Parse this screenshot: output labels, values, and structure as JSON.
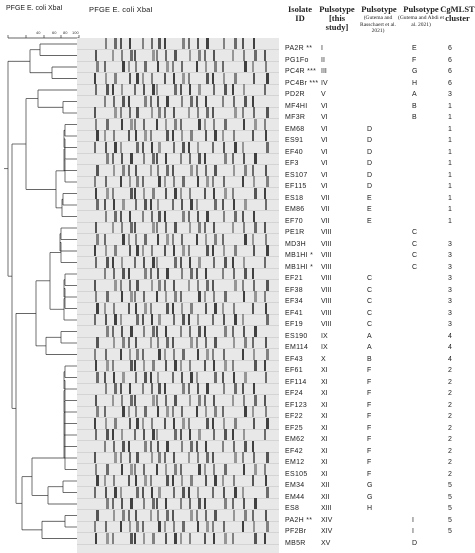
{
  "header": {
    "left_label": "PFGE E. coli XbaI",
    "gel_label": "PFGE E. coli XbaI"
  },
  "scale_ticks": [
    "40",
    "60",
    "80",
    "100"
  ],
  "columns": {
    "isolate": "Isolate ID",
    "pulsotype_this": "Pulsotype [this study]",
    "pulsotype_gutema": "Pulsotype",
    "pulsotype_gutema_sub": "(Gutema and Rasschaert et al. 2021)",
    "pulsotype_abdi": "Pulsotype",
    "pulsotype_abdi_sub": "(Gutema and Abdi et al. 2021)",
    "cgmlst": "CgMLST cluster"
  },
  "rows": [
    {
      "id": "PA2R **",
      "p1": "I",
      "p2": "",
      "p3": "E",
      "cg": "6"
    },
    {
      "id": "PG1Fo",
      "p1": "II",
      "p2": "",
      "p3": "F",
      "cg": "6"
    },
    {
      "id": "PC4R ***",
      "p1": "III",
      "p2": "",
      "p3": "G",
      "cg": "6"
    },
    {
      "id": "PC4Br ***",
      "p1": "IV",
      "p2": "",
      "p3": "H",
      "cg": "6"
    },
    {
      "id": "PD2R",
      "p1": "V",
      "p2": "",
      "p3": "A",
      "cg": "3"
    },
    {
      "id": "MF4HI",
      "p1": "VI",
      "p2": "",
      "p3": "B",
      "cg": "1"
    },
    {
      "id": "MF3R",
      "p1": "VI",
      "p2": "",
      "p3": "B",
      "cg": "1"
    },
    {
      "id": "EM68",
      "p1": "VI",
      "p2": "D",
      "p3": "",
      "cg": "1"
    },
    {
      "id": "ES91",
      "p1": "VI",
      "p2": "D",
      "p3": "",
      "cg": "1"
    },
    {
      "id": "EF40",
      "p1": "VI",
      "p2": "D",
      "p3": "",
      "cg": "1"
    },
    {
      "id": "EF3",
      "p1": "VI",
      "p2": "D",
      "p3": "",
      "cg": "1"
    },
    {
      "id": "ES107",
      "p1": "VI",
      "p2": "D",
      "p3": "",
      "cg": "1"
    },
    {
      "id": "EF115",
      "p1": "VI",
      "p2": "D",
      "p3": "",
      "cg": "1"
    },
    {
      "id": "ES18",
      "p1": "VII",
      "p2": "E",
      "p3": "",
      "cg": "1"
    },
    {
      "id": "EM86",
      "p1": "VII",
      "p2": "E",
      "p3": "",
      "cg": "1"
    },
    {
      "id": "EF70",
      "p1": "VII",
      "p2": "E",
      "p3": "",
      "cg": "1"
    },
    {
      "id": "PE1R",
      "p1": "VIII",
      "p2": "",
      "p3": "C",
      "cg": ""
    },
    {
      "id": "MD3H",
      "p1": "VIII",
      "p2": "",
      "p3": "C",
      "cg": "3"
    },
    {
      "id": "MB1HI *",
      "p1": "VIII",
      "p2": "",
      "p3": "C",
      "cg": "3"
    },
    {
      "id": "MB1HI *",
      "p1": "VIII",
      "p2": "",
      "p3": "C",
      "cg": "3"
    },
    {
      "id": "EF21",
      "p1": "VIII",
      "p2": "C",
      "p3": "",
      "cg": "3"
    },
    {
      "id": "EF38",
      "p1": "VIII",
      "p2": "C",
      "p3": "",
      "cg": "3"
    },
    {
      "id": "EF34",
      "p1": "VIII",
      "p2": "C",
      "p3": "",
      "cg": "3"
    },
    {
      "id": "EF41",
      "p1": "VIII",
      "p2": "C",
      "p3": "",
      "cg": "3"
    },
    {
      "id": "EF19",
      "p1": "VIII",
      "p2": "C",
      "p3": "",
      "cg": "3"
    },
    {
      "id": "ES190",
      "p1": "IX",
      "p2": "A",
      "p3": "",
      "cg": "4"
    },
    {
      "id": "EM114",
      "p1": "IX",
      "p2": "A",
      "p3": "",
      "cg": "4"
    },
    {
      "id": "EF43",
      "p1": "X",
      "p2": "B",
      "p3": "",
      "cg": "4"
    },
    {
      "id": "EF61",
      "p1": "XI",
      "p2": "F",
      "p3": "",
      "cg": "2"
    },
    {
      "id": "EF114",
      "p1": "XI",
      "p2": "F",
      "p3": "",
      "cg": "2"
    },
    {
      "id": "EF24",
      "p1": "XI",
      "p2": "F",
      "p3": "",
      "cg": "2"
    },
    {
      "id": "EF123",
      "p1": "XI",
      "p2": "F",
      "p3": "",
      "cg": "2"
    },
    {
      "id": "EF22",
      "p1": "XI",
      "p2": "F",
      "p3": "",
      "cg": "2"
    },
    {
      "id": "EF25",
      "p1": "XI",
      "p2": "F",
      "p3": "",
      "cg": "2"
    },
    {
      "id": "EM62",
      "p1": "XI",
      "p2": "F",
      "p3": "",
      "cg": "2"
    },
    {
      "id": "EF42",
      "p1": "XI",
      "p2": "F",
      "p3": "",
      "cg": "2"
    },
    {
      "id": "EM12",
      "p1": "XI",
      "p2": "F",
      "p3": "",
      "cg": "2"
    },
    {
      "id": "ES105",
      "p1": "XI",
      "p2": "F",
      "p3": "",
      "cg": "2"
    },
    {
      "id": "EM34",
      "p1": "XII",
      "p2": "G",
      "p3": "",
      "cg": "5"
    },
    {
      "id": "EM44",
      "p1": "XII",
      "p2": "G",
      "p3": "",
      "cg": "5"
    },
    {
      "id": "ES8",
      "p1": "XIII",
      "p2": "H",
      "p3": "",
      "cg": "5"
    },
    {
      "id": "PA2H **",
      "p1": "XIV",
      "p2": "",
      "p3": "I",
      "cg": "5"
    },
    {
      "id": "PF2Br",
      "p1": "XIV",
      "p2": "",
      "p3": "I",
      "cg": "5"
    },
    {
      "id": "MB5R",
      "p1": "XV",
      "p2": "",
      "p3": "D",
      "cg": ""
    }
  ]
}
